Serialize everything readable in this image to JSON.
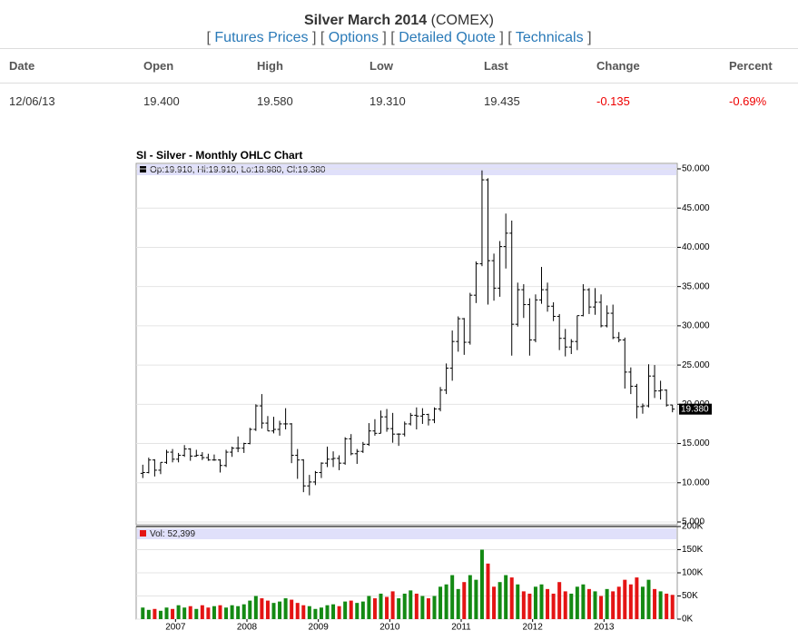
{
  "quote": {
    "title": "Silver March 2014",
    "exchange": "(COMEX)",
    "bracket_open": "[",
    "bracket_close": "]",
    "links": [
      "Futures Prices",
      "Options",
      "Detailed Quote",
      "Technicals"
    ],
    "columns": [
      "Date",
      "Open",
      "High",
      "Low",
      "Last",
      "Change",
      "Percent"
    ],
    "row": [
      "12/06/13",
      "19.400",
      "19.580",
      "19.310",
      "19.435",
      "-0.135",
      "-0.69%"
    ]
  },
  "chart_data": [
    {
      "type": "ohlc",
      "title": "SI - Silver - Monthly OHLC Chart",
      "legend_text": "Op:19.910, Hi:19.910, Lo:18.980, Cl:19.380",
      "last_label": "19.380",
      "color": "#000000",
      "categories": [
        null,
        null,
        null,
        null,
        null,
        null,
        "2007",
        null,
        null,
        null,
        null,
        null,
        null,
        null,
        null,
        null,
        null,
        null,
        "2008",
        null,
        null,
        null,
        null,
        null,
        null,
        null,
        null,
        null,
        null,
        null,
        "2009",
        null,
        null,
        null,
        null,
        null,
        null,
        null,
        null,
        null,
        null,
        null,
        "2010",
        null,
        null,
        null,
        null,
        null,
        null,
        null,
        null,
        null,
        null,
        null,
        "2011",
        null,
        null,
        null,
        null,
        null,
        null,
        null,
        null,
        null,
        null,
        null,
        "2012",
        null,
        null,
        null,
        null,
        null,
        null,
        null,
        null,
        null,
        null,
        null,
        "2013",
        null,
        null,
        null,
        null,
        null,
        null,
        null,
        null,
        null,
        null,
        null
      ],
      "open": [
        11.2,
        11.3,
        12.9,
        11.6,
        12.6,
        13.9,
        13.0,
        13.5,
        14.3,
        13.4,
        13.5,
        13.2,
        12.9,
        12.9,
        12.2,
        13.9,
        14.4,
        14.4,
        15.0,
        16.8,
        19.8,
        17.6,
        16.6,
        16.8,
        17.5,
        17.5,
        13.5,
        12.9,
        9.6,
        10.1,
        11.3,
        12.5,
        13.0,
        13.1,
        12.5,
        15.6,
        13.7,
        14.0,
        14.9,
        16.6,
        16.3,
        18.4,
        16.9,
        16.2,
        16.2,
        17.5,
        18.6,
        18.5,
        18.7,
        18.0,
        19.4,
        21.8,
        24.6,
        28.0,
        30.9,
        27.9,
        33.9,
        37.9,
        48.6,
        38.3,
        34.8,
        40.1,
        41.8,
        30.2,
        34.6,
        32.7,
        28.2,
        33.3,
        34.6,
        32.5,
        31.2,
        28.4,
        27.3,
        28.0,
        31.3,
        34.6,
        32.4,
        33.0,
        30.0,
        31.6,
        28.5,
        28.2,
        24.1,
        22.3,
        19.7,
        19.8,
        23.6,
        21.7,
        21.8,
        19.91
      ],
      "high": [
        12.3,
        13.2,
        13.0,
        12.6,
        14.2,
        14.3,
        13.8,
        14.8,
        14.4,
        14.2,
        13.9,
        13.7,
        13.6,
        13.0,
        14.2,
        14.6,
        15.9,
        15.1,
        17.0,
        20.0,
        21.3,
        18.5,
        18.4,
        17.9,
        19.5,
        17.6,
        14.3,
        13.0,
        11.0,
        11.5,
        12.6,
        14.6,
        14.0,
        13.5,
        15.8,
        16.2,
        14.3,
        15.2,
        17.6,
        18.1,
        19.2,
        19.4,
        18.9,
        16.3,
        17.8,
        18.9,
        19.6,
        19.5,
        18.8,
        19.6,
        22.2,
        25.2,
        29.4,
        31.2,
        31.0,
        34.2,
        38.2,
        49.8,
        48.8,
        39.2,
        40.8,
        44.3,
        43.4,
        35.5,
        35.3,
        33.5,
        34.0,
        37.5,
        35.5,
        33.0,
        31.5,
        29.6,
        28.3,
        31.3,
        35.3,
        34.8,
        34.8,
        34.0,
        32.6,
        32.7,
        29.2,
        28.5,
        24.7,
        22.6,
        20.1,
        25.1,
        25.0,
        23.0,
        21.9,
        19.91
      ],
      "low": [
        10.6,
        11.2,
        10.8,
        11.1,
        12.4,
        12.6,
        12.6,
        13.3,
        12.8,
        13.3,
        12.9,
        12.8,
        12.8,
        11.3,
        12.0,
        13.3,
        13.9,
        13.8,
        14.9,
        16.6,
        16.9,
        16.6,
        16.3,
        16.0,
        16.8,
        12.5,
        10.5,
        8.8,
        8.4,
        9.7,
        10.6,
        12.0,
        12.0,
        11.6,
        12.3,
        13.5,
        12.4,
        13.8,
        14.7,
        16.0,
        16.3,
        16.5,
        15.1,
        14.7,
        15.9,
        17.3,
        16.8,
        17.5,
        17.3,
        17.6,
        19.1,
        21.3,
        23.0,
        26.7,
        26.3,
        27.6,
        32.9,
        37.6,
        32.7,
        33.2,
        33.7,
        37.3,
        26.2,
        29.9,
        31.0,
        26.2,
        27.9,
        32.8,
        31.8,
        30.6,
        26.9,
        26.1,
        26.4,
        26.9,
        31.2,
        31.5,
        31.4,
        29.8,
        29.8,
        28.3,
        27.9,
        22.0,
        21.3,
        18.2,
        18.8,
        19.6,
        20.8,
        20.6,
        19.7,
        18.98
      ],
      "close": [
        11.3,
        12.9,
        11.6,
        12.6,
        13.9,
        13.0,
        13.5,
        14.3,
        13.4,
        13.5,
        13.2,
        12.9,
        12.9,
        12.2,
        13.9,
        14.4,
        14.4,
        15.0,
        16.8,
        19.8,
        17.6,
        16.6,
        16.8,
        17.5,
        17.5,
        13.5,
        12.9,
        9.6,
        10.1,
        11.3,
        12.5,
        13.0,
        13.1,
        12.5,
        15.6,
        13.7,
        14.0,
        14.9,
        16.6,
        16.3,
        18.4,
        16.9,
        16.2,
        16.2,
        17.5,
        18.6,
        18.5,
        18.7,
        18.0,
        19.4,
        21.8,
        24.6,
        28.0,
        30.9,
        27.9,
        33.9,
        37.9,
        48.6,
        38.3,
        34.8,
        40.1,
        41.8,
        30.2,
        34.6,
        32.7,
        28.2,
        33.3,
        34.6,
        32.5,
        31.2,
        28.4,
        27.3,
        28.0,
        31.3,
        34.6,
        32.4,
        33.0,
        30.0,
        31.6,
        28.5,
        28.2,
        24.1,
        22.3,
        19.7,
        19.8,
        23.6,
        21.7,
        21.8,
        19.9,
        19.38
      ],
      "ylim": [
        5,
        50
      ],
      "yticks": [
        {
          "value": 5,
          "label": "5.000"
        },
        {
          "value": 10,
          "label": "10.000"
        },
        {
          "value": 15,
          "label": "15.000"
        },
        {
          "value": 20,
          "label": "20.000"
        },
        {
          "value": 25,
          "label": "25.000"
        },
        {
          "value": 30,
          "label": "30.000"
        },
        {
          "value": 35,
          "label": "35.000"
        },
        {
          "value": 40,
          "label": "40.000"
        },
        {
          "value": 45,
          "label": "45.000"
        },
        {
          "value": 50,
          "label": "50.000"
        }
      ],
      "grid": true
    },
    {
      "type": "bar",
      "legend_text": "Vol: 52,399",
      "up_color": "#138a13",
      "down_color": "#e41414",
      "values": [
        25000,
        20000,
        22000,
        18000,
        25000,
        22000,
        30000,
        25000,
        28000,
        22000,
        30000,
        25000,
        28000,
        30000,
        25000,
        30000,
        28000,
        32000,
        40000,
        50000,
        45000,
        40000,
        35000,
        38000,
        45000,
        42000,
        35000,
        30000,
        28000,
        22000,
        25000,
        30000,
        32000,
        28000,
        38000,
        40000,
        35000,
        38000,
        50000,
        45000,
        55000,
        48000,
        60000,
        45000,
        55000,
        62000,
        55000,
        50000,
        45000,
        50000,
        70000,
        75000,
        95000,
        65000,
        80000,
        95000,
        85000,
        150000,
        120000,
        70000,
        80000,
        95000,
        90000,
        75000,
        60000,
        55000,
        70000,
        75000,
        65000,
        55000,
        80000,
        60000,
        55000,
        70000,
        75000,
        65000,
        60000,
        50000,
        65000,
        60000,
        70000,
        85000,
        75000,
        90000,
        70000,
        85000,
        65000,
        60000,
        55000,
        52399
      ],
      "ylim": [
        0,
        200000
      ],
      "yticks": [
        {
          "value": 0,
          "label": "0K"
        },
        {
          "value": 50000,
          "label": "50K"
        },
        {
          "value": 100000,
          "label": "100K"
        },
        {
          "value": 150000,
          "label": "150K"
        },
        {
          "value": 200000,
          "label": "200K"
        }
      ]
    }
  ]
}
